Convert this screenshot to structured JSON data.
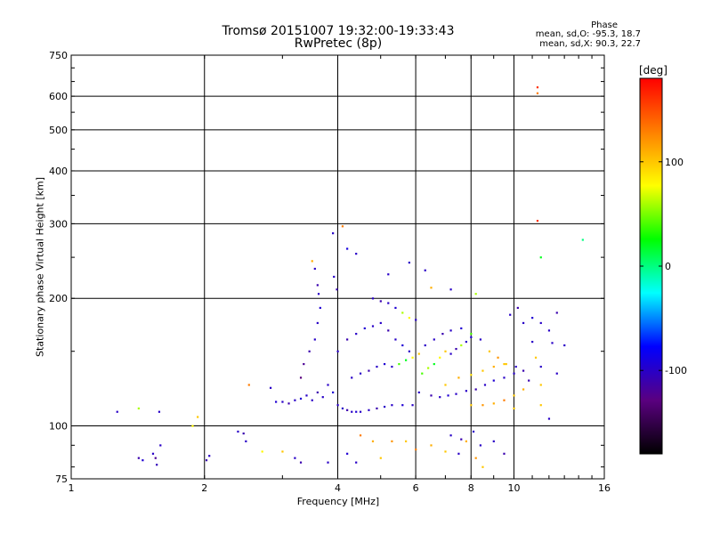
{
  "chart_data": {
    "type": "scatter",
    "title": "Tromsø 20151007 19:32:00-19:33:43",
    "subtitle": "RwPretec (8p)",
    "xlabel": "Frequency [MHz]",
    "ylabel": "Stationary phase Virtual Height [km]",
    "x_scale": "log",
    "y_scale": "log",
    "xlim": [
      1,
      16
    ],
    "ylim": [
      75,
      750
    ],
    "x_ticks": [
      1,
      2,
      4,
      6,
      8,
      10,
      16
    ],
    "x_tick_labels": [
      "1",
      "2",
      "4",
      "6",
      "8",
      "10",
      "16"
    ],
    "y_ticks": [
      75,
      100,
      200,
      300,
      400,
      500,
      600,
      750
    ],
    "y_tick_labels": [
      "75",
      "100",
      "200",
      "300",
      "400",
      "500",
      "600",
      "750"
    ],
    "grid": true,
    "colorbar": {
      "label": "[deg]",
      "range": [
        -180,
        180
      ],
      "ticks": [
        100,
        0,
        -100
      ],
      "tick_labels": [
        "100",
        "0",
        "-100"
      ],
      "colors": [
        "#000000",
        "#5a0080",
        "#0000ff",
        "#00ffff",
        "#00ff00",
        "#ffff00",
        "#ff8000",
        "#ff0000"
      ]
    },
    "phase_stats": {
      "title": "Phase",
      "o_line": "mean, sd,O: -95.3, 18.7",
      "x_line": "mean, sd,X:  90.3, 22.7"
    },
    "points": [
      [
        1.27,
        108,
        -100
      ],
      [
        1.42,
        110,
        60
      ],
      [
        1.42,
        84,
        -110
      ],
      [
        1.45,
        83,
        -95
      ],
      [
        1.53,
        86,
        -100
      ],
      [
        1.55,
        84,
        -120
      ],
      [
        1.56,
        81,
        -105
      ],
      [
        1.59,
        90,
        -100
      ],
      [
        1.58,
        108,
        -100
      ],
      [
        1.88,
        100,
        80
      ],
      [
        1.93,
        105,
        100
      ],
      [
        2.02,
        83,
        -110
      ],
      [
        2.05,
        85,
        -100
      ],
      [
        2.38,
        97,
        -100
      ],
      [
        2.45,
        96,
        -110
      ],
      [
        2.48,
        92,
        -100
      ],
      [
        2.52,
        125,
        130
      ],
      [
        2.82,
        123,
        -100
      ],
      [
        2.9,
        114,
        -95
      ],
      [
        3.0,
        114,
        -100
      ],
      [
        3.1,
        113,
        -110
      ],
      [
        3.2,
        115,
        -100
      ],
      [
        3.3,
        116,
        -95
      ],
      [
        3.4,
        118,
        -100
      ],
      [
        3.5,
        115,
        -100
      ],
      [
        3.6,
        120,
        -110
      ],
      [
        3.7,
        117,
        -100
      ],
      [
        3.3,
        130,
        -130
      ],
      [
        3.35,
        140,
        -120
      ],
      [
        3.45,
        150,
        -110
      ],
      [
        3.55,
        160,
        -100
      ],
      [
        3.6,
        175,
        -100
      ],
      [
        3.65,
        190,
        -95
      ],
      [
        3.62,
        205,
        -100
      ],
      [
        3.6,
        215,
        -110
      ],
      [
        3.55,
        235,
        -100
      ],
      [
        3.5,
        245,
        110
      ],
      [
        3.9,
        285,
        -100
      ],
      [
        4.1,
        296,
        130
      ],
      [
        4.2,
        262,
        -90
      ],
      [
        4.4,
        255,
        -100
      ],
      [
        3.92,
        225,
        -100
      ],
      [
        3.98,
        210,
        -110
      ],
      [
        3.8,
        125,
        -100
      ],
      [
        3.9,
        120,
        -95
      ],
      [
        4.0,
        112,
        -100
      ],
      [
        4.1,
        110,
        -100
      ],
      [
        4.2,
        109,
        -110
      ],
      [
        4.3,
        108,
        -100
      ],
      [
        4.4,
        108,
        -95
      ],
      [
        4.5,
        108,
        -100
      ],
      [
        4.7,
        109,
        -100
      ],
      [
        4.9,
        110,
        -110
      ],
      [
        5.1,
        111,
        -100
      ],
      [
        5.3,
        112,
        -100
      ],
      [
        5.6,
        112,
        -95
      ],
      [
        5.9,
        112,
        -100
      ],
      [
        4.0,
        150,
        -100
      ],
      [
        4.2,
        160,
        -110
      ],
      [
        4.4,
        165,
        -100
      ],
      [
        4.6,
        170,
        -95
      ],
      [
        4.8,
        172,
        -100
      ],
      [
        5.0,
        175,
        -100
      ],
      [
        5.2,
        168,
        -110
      ],
      [
        5.4,
        160,
        -100
      ],
      [
        5.6,
        155,
        -95
      ],
      [
        5.8,
        150,
        -100
      ],
      [
        4.3,
        130,
        -100
      ],
      [
        4.5,
        133,
        -100
      ],
      [
        4.7,
        135,
        -110
      ],
      [
        4.9,
        138,
        -100
      ],
      [
        5.1,
        140,
        -95
      ],
      [
        5.3,
        138,
        -100
      ],
      [
        5.5,
        140,
        40
      ],
      [
        5.7,
        143,
        20
      ],
      [
        5.9,
        145,
        80
      ],
      [
        6.1,
        148,
        100
      ],
      [
        4.8,
        200,
        -100
      ],
      [
        5.0,
        197,
        -110
      ],
      [
        5.2,
        195,
        -100
      ],
      [
        5.4,
        190,
        -95
      ],
      [
        5.6,
        185,
        60
      ],
      [
        5.8,
        180,
        80
      ],
      [
        6.0,
        178,
        -100
      ],
      [
        5.2,
        228,
        -100
      ],
      [
        6.3,
        233,
        -100
      ],
      [
        6.5,
        212,
        110
      ],
      [
        7.2,
        210,
        -100
      ],
      [
        8.2,
        205,
        60
      ],
      [
        5.8,
        243,
        -100
      ],
      [
        6.1,
        120,
        -100
      ],
      [
        6.5,
        118,
        -110
      ],
      [
        6.8,
        117,
        -100
      ],
      [
        7.1,
        118,
        -95
      ],
      [
        7.4,
        119,
        -100
      ],
      [
        7.8,
        121,
        -100
      ],
      [
        8.2,
        122,
        -110
      ],
      [
        8.6,
        125,
        -100
      ],
      [
        9.0,
        128,
        -95
      ],
      [
        9.5,
        130,
        -100
      ],
      [
        10.0,
        133,
        -100
      ],
      [
        10.5,
        135,
        -110
      ],
      [
        6.2,
        133,
        40
      ],
      [
        6.4,
        137,
        60
      ],
      [
        6.6,
        140,
        20
      ],
      [
        6.8,
        145,
        80
      ],
      [
        7.0,
        150,
        100
      ],
      [
        7.2,
        148,
        -100
      ],
      [
        7.4,
        152,
        -110
      ],
      [
        7.6,
        155,
        60
      ],
      [
        7.8,
        158,
        -100
      ],
      [
        8.0,
        162,
        -95
      ],
      [
        6.3,
        155,
        -100
      ],
      [
        6.6,
        160,
        -100
      ],
      [
        6.9,
        165,
        -110
      ],
      [
        7.2,
        168,
        -100
      ],
      [
        7.6,
        170,
        -95
      ],
      [
        8.0,
        165,
        40
      ],
      [
        8.4,
        160,
        -100
      ],
      [
        8.8,
        150,
        100
      ],
      [
        9.2,
        145,
        120
      ],
      [
        9.6,
        140,
        100
      ],
      [
        10.1,
        138,
        -100
      ],
      [
        7.0,
        125,
        100
      ],
      [
        7.5,
        130,
        110
      ],
      [
        8.0,
        132,
        90
      ],
      [
        8.5,
        135,
        100
      ],
      [
        9.0,
        138,
        110
      ],
      [
        9.5,
        140,
        100
      ],
      [
        10.0,
        118,
        100
      ],
      [
        10.5,
        122,
        110
      ],
      [
        8.0,
        112,
        100
      ],
      [
        8.5,
        112,
        120
      ],
      [
        9.0,
        113,
        110
      ],
      [
        9.5,
        115,
        130
      ],
      [
        10.0,
        110,
        100
      ],
      [
        7.2,
        95,
        -100
      ],
      [
        7.6,
        93,
        -110
      ],
      [
        8.1,
        97,
        -100
      ],
      [
        8.4,
        90,
        -100
      ],
      [
        9.0,
        92,
        -100
      ],
      [
        9.5,
        86,
        -110
      ],
      [
        7.5,
        86,
        -100
      ],
      [
        4.5,
        95,
        130
      ],
      [
        4.8,
        92,
        110
      ],
      [
        5.0,
        84,
        100
      ],
      [
        5.3,
        92,
        120
      ],
      [
        5.7,
        92,
        100
      ],
      [
        6.0,
        88,
        130
      ],
      [
        6.5,
        90,
        110
      ],
      [
        7.0,
        87,
        100
      ],
      [
        7.8,
        92,
        110
      ],
      [
        8.2,
        84,
        120
      ],
      [
        8.5,
        80,
        100
      ],
      [
        2.7,
        87,
        80
      ],
      [
        3.0,
        87,
        100
      ],
      [
        3.2,
        84,
        -100
      ],
      [
        3.3,
        82,
        -110
      ],
      [
        3.8,
        82,
        -100
      ],
      [
        4.2,
        86,
        -95
      ],
      [
        4.4,
        82,
        -100
      ],
      [
        9.8,
        183,
        -100
      ],
      [
        10.2,
        190,
        -110
      ],
      [
        10.5,
        175,
        -100
      ],
      [
        11.0,
        180,
        -95
      ],
      [
        11.5,
        175,
        -100
      ],
      [
        12.0,
        168,
        -100
      ],
      [
        12.5,
        185,
        -110
      ],
      [
        12.2,
        157,
        -100
      ],
      [
        13.0,
        155,
        -100
      ],
      [
        11.0,
        158,
        -100
      ],
      [
        11.2,
        145,
        100
      ],
      [
        11.5,
        138,
        -100
      ],
      [
        10.8,
        128,
        -110
      ],
      [
        11.5,
        125,
        100
      ],
      [
        12.5,
        133,
        -100
      ],
      [
        11.5,
        112,
        100
      ],
      [
        12.0,
        104,
        -100
      ],
      [
        11.3,
        610,
        130
      ],
      [
        11.3,
        630,
        160
      ],
      [
        11.3,
        305,
        160
      ],
      [
        11.5,
        250,
        20
      ],
      [
        14.3,
        275,
        0
      ]
    ]
  }
}
